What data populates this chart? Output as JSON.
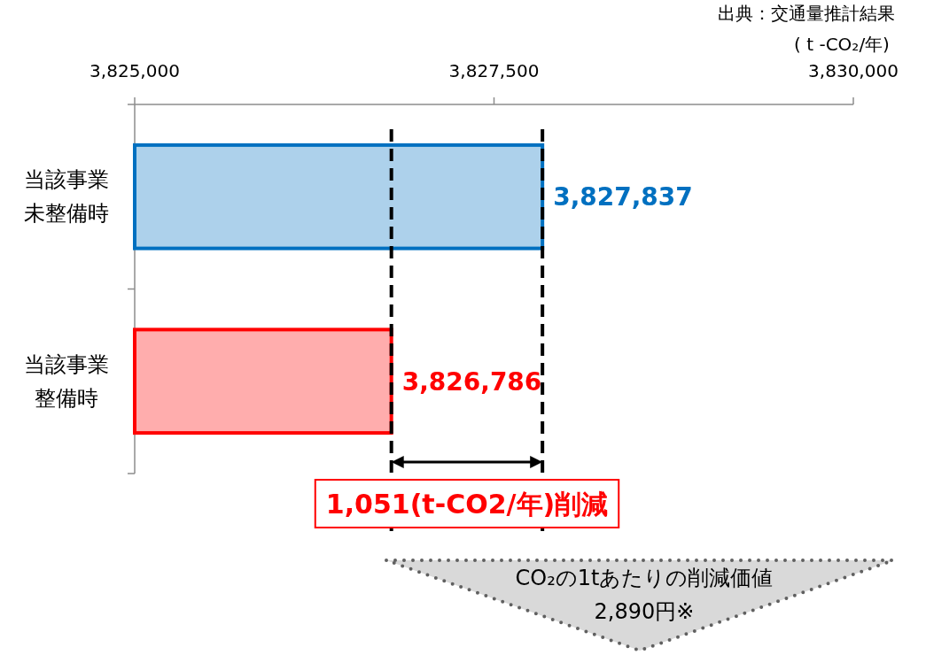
{
  "chart_data": {
    "type": "bar",
    "orientation": "horizontal",
    "categories": [
      "当該事業未整備時",
      "当該事業整備時"
    ],
    "values": [
      3827837,
      3826786
    ],
    "colors": [
      "#0070c0",
      "#ff0000"
    ],
    "value_labels": [
      "3,827,837",
      "3,826,786"
    ],
    "xlim": [
      3825000,
      3830000
    ],
    "xticks": [
      {
        "value": 3825000,
        "label": "3,825,000"
      },
      {
        "value": 3827500,
        "label": "3,827,500"
      },
      {
        "value": 3830000,
        "label": "3,830,000"
      }
    ],
    "xlabel": "( t -CO₂/年)",
    "ref_lines": [
      {
        "axis": "x",
        "value": 3826786,
        "color": "#000000",
        "line_style": "dashed"
      },
      {
        "axis": "x",
        "value": 3827837,
        "color": "#000000",
        "line_style": "dashed"
      }
    ],
    "annotations": [
      "出典：交通量推計結果",
      "1,051(t-CO2/年)削減",
      "CO₂の1tあたりの削減価値\n2,890円※"
    ]
  }
}
